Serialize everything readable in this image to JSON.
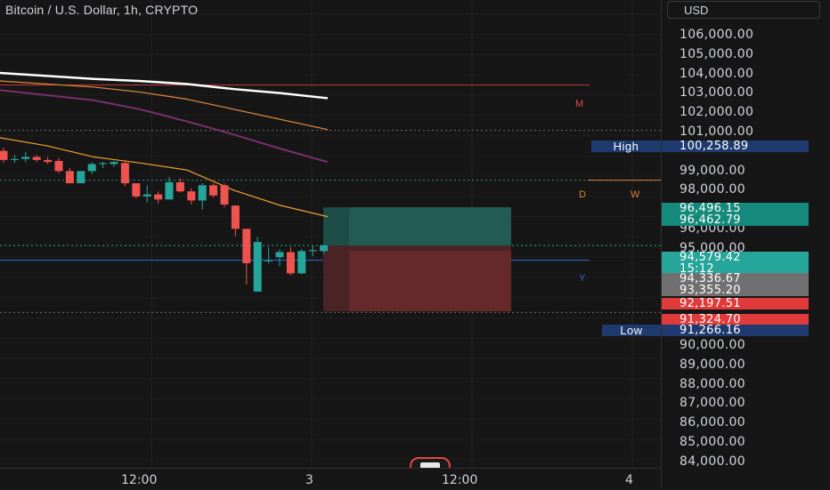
{
  "header": {
    "title": "Bitcoin / U.S. Dollar, 1h, CRYPTO"
  },
  "currency": {
    "label": "USD"
  },
  "price_axis": {
    "ticks": [
      "106,000.00",
      "105,000.00",
      "104,000.00",
      "103,000.00",
      "102,000.00",
      "101,000.00",
      "99,000.00",
      "98,000.00",
      "96,000.00",
      "95,000.00",
      "90,000.00",
      "89,000.00",
      "88,000.00",
      "87,000.00",
      "86,000.00",
      "85,000.00",
      "84,000.00"
    ],
    "high_label": "High",
    "high_value": "100,258.89",
    "low_label": "Low",
    "low_value": "91,266.16",
    "tags": {
      "green_top": "96,496.15",
      "green_bottom": "96,462.79",
      "current_price": "94,579.42",
      "countdown": "15:12",
      "grey_top": "94,336.67",
      "grey_bottom": "93,355.20",
      "red_top": "92,197.51",
      "red_bottom": "91,324.70"
    }
  },
  "time_axis": {
    "labels": [
      "12:00",
      "3",
      "12:00",
      "4"
    ]
  },
  "line_markers": {
    "m": "M",
    "d": "D",
    "w": "W",
    "y": "Y"
  },
  "colors": {
    "background": "#161616",
    "up": "#26a69a",
    "down": "#ef5350",
    "high_low_tag": "#1e3a6e",
    "ma_white": "#ffffff",
    "ma_orange": "#d9823b",
    "ma_purple": "#7a2f6b",
    "ma_gold": "#f0a030"
  },
  "icons": {
    "brand": "tradingview-logo-icon"
  },
  "chart_data": {
    "type": "candlestick",
    "symbol": "Bitcoin / U.S. Dollar",
    "interval": "1h",
    "y_range": [
      83600,
      106700
    ],
    "candles": [
      {
        "o": 99250,
        "h": 99400,
        "l": 98650,
        "c": 98800
      },
      {
        "o": 98800,
        "h": 99050,
        "l": 98650,
        "c": 98850
      },
      {
        "o": 98850,
        "h": 99200,
        "l": 98700,
        "c": 98950
      },
      {
        "o": 98950,
        "h": 99050,
        "l": 98700,
        "c": 98800
      },
      {
        "o": 98800,
        "h": 98950,
        "l": 98600,
        "c": 98700
      },
      {
        "o": 98750,
        "h": 98900,
        "l": 98150,
        "c": 98250
      },
      {
        "o": 98250,
        "h": 98400,
        "l": 97650,
        "c": 97650
      },
      {
        "o": 97650,
        "h": 98250,
        "l": 97650,
        "c": 98250
      },
      {
        "o": 98250,
        "h": 98700,
        "l": 98100,
        "c": 98600
      },
      {
        "o": 98600,
        "h": 98700,
        "l": 98400,
        "c": 98650
      },
      {
        "o": 98600,
        "h": 98750,
        "l": 98450,
        "c": 98700
      },
      {
        "o": 98650,
        "h": 98800,
        "l": 97500,
        "c": 97650
      },
      {
        "o": 97650,
        "h": 97650,
        "l": 96900,
        "c": 97000
      },
      {
        "o": 97000,
        "h": 97550,
        "l": 96700,
        "c": 97100
      },
      {
        "o": 97100,
        "h": 97250,
        "l": 96650,
        "c": 96850
      },
      {
        "o": 96850,
        "h": 97950,
        "l": 96850,
        "c": 97700
      },
      {
        "o": 97700,
        "h": 97900,
        "l": 97200,
        "c": 97250
      },
      {
        "o": 97250,
        "h": 97400,
        "l": 96600,
        "c": 96800
      },
      {
        "o": 96800,
        "h": 97650,
        "l": 96350,
        "c": 97550
      },
      {
        "o": 97550,
        "h": 97650,
        "l": 96950,
        "c": 97050
      },
      {
        "o": 97550,
        "h": 97650,
        "l": 96450,
        "c": 96600
      },
      {
        "o": 96550,
        "h": 96550,
        "l": 95050,
        "c": 95400
      },
      {
        "o": 95400,
        "h": 95400,
        "l": 92650,
        "c": 93700
      },
      {
        "o": 92300,
        "h": 95000,
        "l": 92300,
        "c": 94750
      },
      {
        "o": 93800,
        "h": 94500,
        "l": 93700,
        "c": 93850
      },
      {
        "o": 94000,
        "h": 94400,
        "l": 93550,
        "c": 94250
      },
      {
        "o": 94250,
        "h": 94500,
        "l": 93100,
        "c": 93200
      },
      {
        "o": 93200,
        "h": 94400,
        "l": 93150,
        "c": 94300
      },
      {
        "o": 94300,
        "h": 94600,
        "l": 94050,
        "c": 94350
      },
      {
        "o": 94300,
        "h": 94650,
        "l": 94150,
        "c": 94580
      }
    ],
    "moving_averages": [
      {
        "name": "white",
        "points": [
          103100,
          102950,
          102800,
          102700,
          102550,
          102300,
          102100,
          101850
        ]
      },
      {
        "name": "orange",
        "points": [
          102700,
          102550,
          102400,
          102150,
          101800,
          101300,
          100800,
          100300
        ]
      },
      {
        "name": "purple",
        "points": [
          102250,
          102000,
          101750,
          101300,
          100700,
          100050,
          99350,
          98700
        ]
      },
      {
        "name": "gold",
        "points": [
          99900,
          99500,
          98950,
          98650,
          98300,
          97300,
          96550,
          96000
        ]
      }
    ],
    "levels": [
      {
        "label": "M",
        "price": 102500
      },
      {
        "label": "D",
        "price": 97800
      },
      {
        "label": "W",
        "price": 97800
      },
      {
        "label": "Y",
        "price": 93850
      }
    ],
    "position": {
      "entry": 94579.42,
      "target": 96462.79,
      "stop": 91324.7
    }
  }
}
